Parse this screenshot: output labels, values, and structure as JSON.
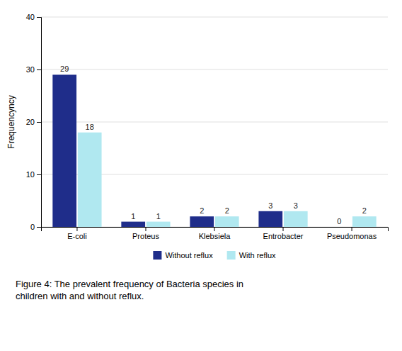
{
  "chart_data": {
    "type": "bar",
    "categories": [
      "E-coli",
      "Proteus",
      "Klebsiela",
      "Entrobacter",
      "Pseudomonas"
    ],
    "series": [
      {
        "name": "Without reflux",
        "color": "#1F2D8A",
        "values": [
          29,
          1,
          2,
          3,
          0
        ]
      },
      {
        "name": "With reflux",
        "color": "#B0E8F0",
        "values": [
          18,
          1,
          2,
          3,
          2
        ]
      }
    ],
    "ylabel": "Frequencyncy",
    "ylim": [
      0,
      40
    ],
    "yticks": [
      0,
      10,
      20,
      30,
      40
    ],
    "grid": true,
    "legend": "bottom",
    "data_labels": true,
    "caption": "Figure 4: The prevalent frequency of Bacteria species in\nchildren with and without reflux."
  }
}
